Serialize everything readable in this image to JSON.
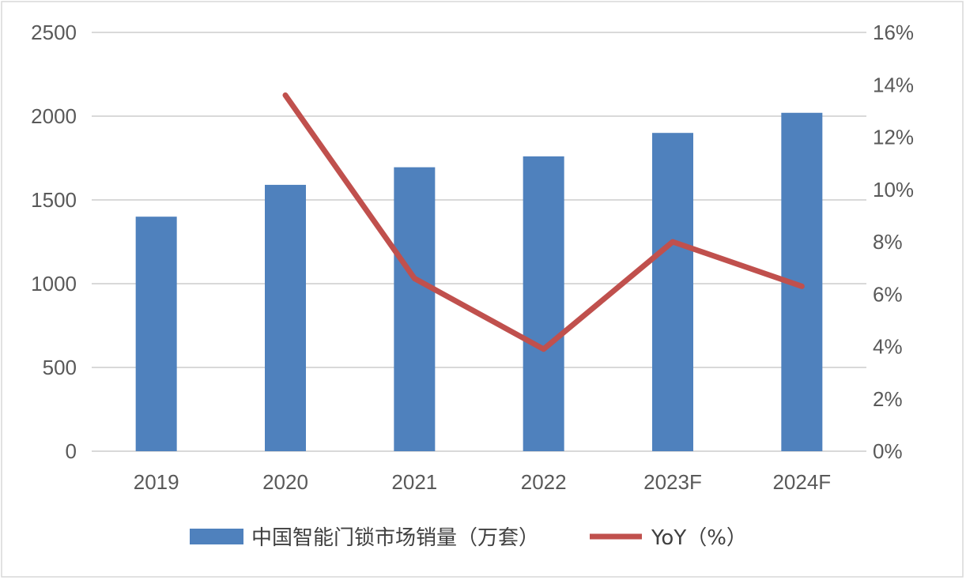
{
  "chart_data": {
    "type": "bar",
    "categories": [
      "2019",
      "2020",
      "2021",
      "2022",
      "2023F",
      "2024F"
    ],
    "series": [
      {
        "name": "中国智能门锁市场销量（万套）",
        "type": "bar",
        "axis": "left",
        "values": [
          1400,
          1590,
          1695,
          1760,
          1900,
          2020
        ],
        "color": "#4f81bd"
      },
      {
        "name": "YoY（%）",
        "type": "line",
        "axis": "right",
        "values": [
          null,
          13.6,
          6.6,
          3.9,
          8.0,
          6.3
        ],
        "color": "#c0504d"
      }
    ],
    "y_left": {
      "min": 0,
      "max": 2500,
      "ticks": [
        "0",
        "500",
        "1000",
        "1500",
        "2000",
        "2500"
      ]
    },
    "y_right": {
      "min": 0,
      "max": 16,
      "ticks": [
        "0%",
        "2%",
        "4%",
        "6%",
        "8%",
        "10%",
        "12%",
        "14%",
        "16%"
      ]
    },
    "grid": true,
    "legend_position": "bottom"
  }
}
